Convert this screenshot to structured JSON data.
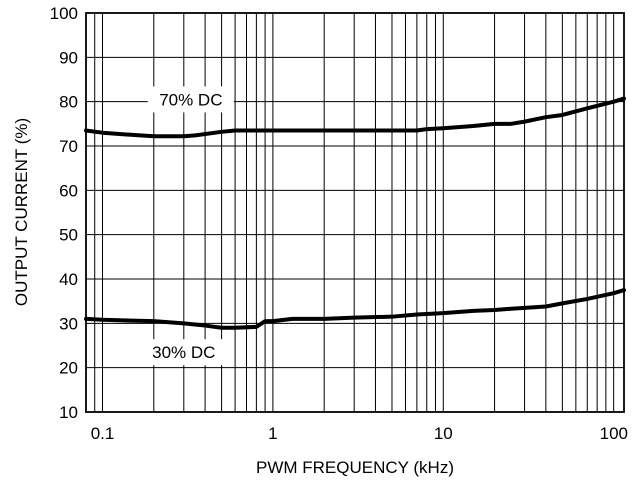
{
  "chart_data": {
    "type": "line",
    "title": "",
    "xlabel": "PWM FREQUENCY (kHz)",
    "ylabel": "OUTPUT CURRENT (%)",
    "x_scale": "log",
    "xlim": [
      0.08,
      115
    ],
    "ylim": [
      10,
      100
    ],
    "x_ticks": [
      0.1,
      1,
      10,
      100
    ],
    "x_tick_labels": [
      "0.1",
      "1",
      "10",
      "100"
    ],
    "y_ticks": [
      10,
      20,
      30,
      40,
      50,
      60,
      70,
      80,
      90,
      100
    ],
    "y_tick_labels": [
      "10",
      "20",
      "30",
      "40",
      "50",
      "60",
      "70",
      "80",
      "90",
      "100"
    ],
    "grid": true,
    "series": [
      {
        "x": [
          0.08,
          0.1,
          0.15,
          0.2,
          0.3,
          0.35,
          0.5,
          0.6,
          1,
          2,
          5,
          7,
          8,
          10,
          15,
          20,
          25,
          30,
          40,
          50,
          70,
          100,
          115
        ],
        "y": [
          73.5,
          73,
          72.5,
          72.2,
          72.2,
          72.4,
          73.2,
          73.5,
          73.5,
          73.5,
          73.5,
          73.5,
          73.8,
          74,
          74.5,
          75,
          75,
          75.5,
          76.5,
          77,
          78.5,
          80,
          80.7
        ]
      },
      {
        "x": [
          0.08,
          0.1,
          0.15,
          0.2,
          0.3,
          0.4,
          0.5,
          0.6,
          0.8,
          0.9,
          1,
          1.3,
          2,
          3,
          5,
          7,
          10,
          15,
          20,
          25,
          40,
          50,
          70,
          100,
          115
        ],
        "y": [
          31,
          30.8,
          30.6,
          30.5,
          30,
          29.5,
          29,
          29,
          29.2,
          30.5,
          30.5,
          31,
          31,
          31.3,
          31.5,
          32,
          32.3,
          32.8,
          33,
          33.3,
          33.8,
          34.5,
          35.5,
          36.8,
          37.5
        ]
      }
    ],
    "annotations": [
      {
        "text": "70% DC",
        "x": 0.33,
        "y": 80.5
      },
      {
        "text": "30% DC",
        "x": 0.3,
        "y": 23.5
      }
    ]
  }
}
